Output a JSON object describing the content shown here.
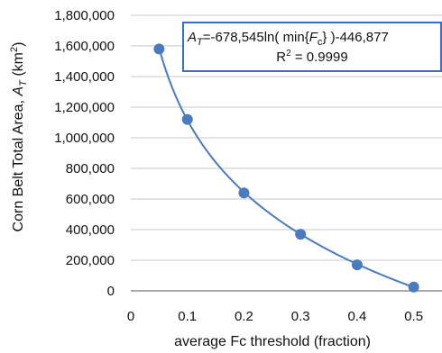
{
  "chart_data": {
    "type": "scatter",
    "title": "",
    "xlabel": "average Fc threshold (fraction)",
    "ylabel_prefix": "Corn Belt Total Area, ",
    "ylabel_symbol": "A",
    "ylabel_sub": "T",
    "ylabel_unit_open": " (km",
    "ylabel_unit_sup": "2",
    "ylabel_unit_close": ")",
    "xlim": [
      0,
      0.55
    ],
    "ylim": [
      0,
      1800000
    ],
    "x_ticks": [
      "0",
      "0.1",
      "0.2",
      "0.3",
      "0.4",
      "0.5"
    ],
    "x_tick_values": [
      0,
      0.1,
      0.2,
      0.3,
      0.4,
      0.5
    ],
    "y_ticks": [
      "0",
      "200,000",
      "400,000",
      "600,000",
      "800,000",
      "1,000,000",
      "1,200,000",
      "1,400,000",
      "1,600,000",
      "1,800,000"
    ],
    "y_tick_values": [
      0,
      200000,
      400000,
      600000,
      800000,
      1000000,
      1200000,
      1400000,
      1600000,
      1800000
    ],
    "grid": "horizontal",
    "series": [
      {
        "x": [
          0.05,
          0.1,
          0.2,
          0.3,
          0.4,
          0.5
        ],
        "y": [
          1580000,
          1120000,
          640000,
          370000,
          170000,
          25000
        ]
      }
    ],
    "trendline": {
      "a": -678545,
      "b": -446877,
      "x_from": 0.05,
      "x_to": 0.5
    },
    "marker_color": "#4a7bbf",
    "line_color": "#4a7bbf",
    "annotation": {
      "lhs_symbol": "A",
      "lhs_sub": "T",
      "rhs_1": "=-678,545ln( min{",
      "rhs_symbol": "F",
      "rhs_sub": "c",
      "rhs_2": "} )-446,877",
      "r2_label": "R",
      "r2_sup": "2",
      "r2_value": " = 0.9999",
      "border_color": "#3a6fc4"
    }
  }
}
